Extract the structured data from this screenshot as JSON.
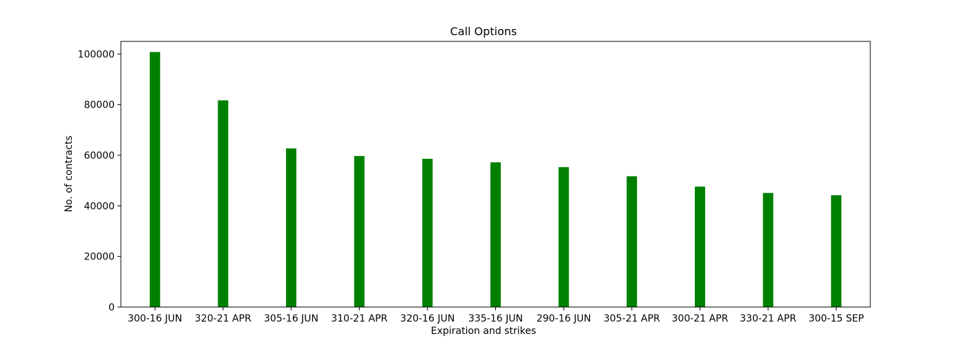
{
  "chart_data": {
    "type": "bar",
    "title": "Call Options",
    "xlabel": "Expiration and strikes",
    "ylabel": "No. of contracts",
    "categories": [
      "300-16 JUN",
      "320-21 APR",
      "305-16 JUN",
      "310-21 APR",
      "320-16 JUN",
      "335-16 JUN",
      "290-16 JUN",
      "305-21 APR",
      "300-21 APR",
      "330-21 APR",
      "300-15 SEP"
    ],
    "values": [
      100800,
      81700,
      62700,
      59700,
      58600,
      57200,
      55300,
      51700,
      47600,
      45100,
      44200
    ],
    "ylim": [
      0,
      105000
    ],
    "yticks": [
      0,
      20000,
      40000,
      60000,
      80000,
      100000
    ],
    "bar_color": "#008000",
    "grid": false
  }
}
